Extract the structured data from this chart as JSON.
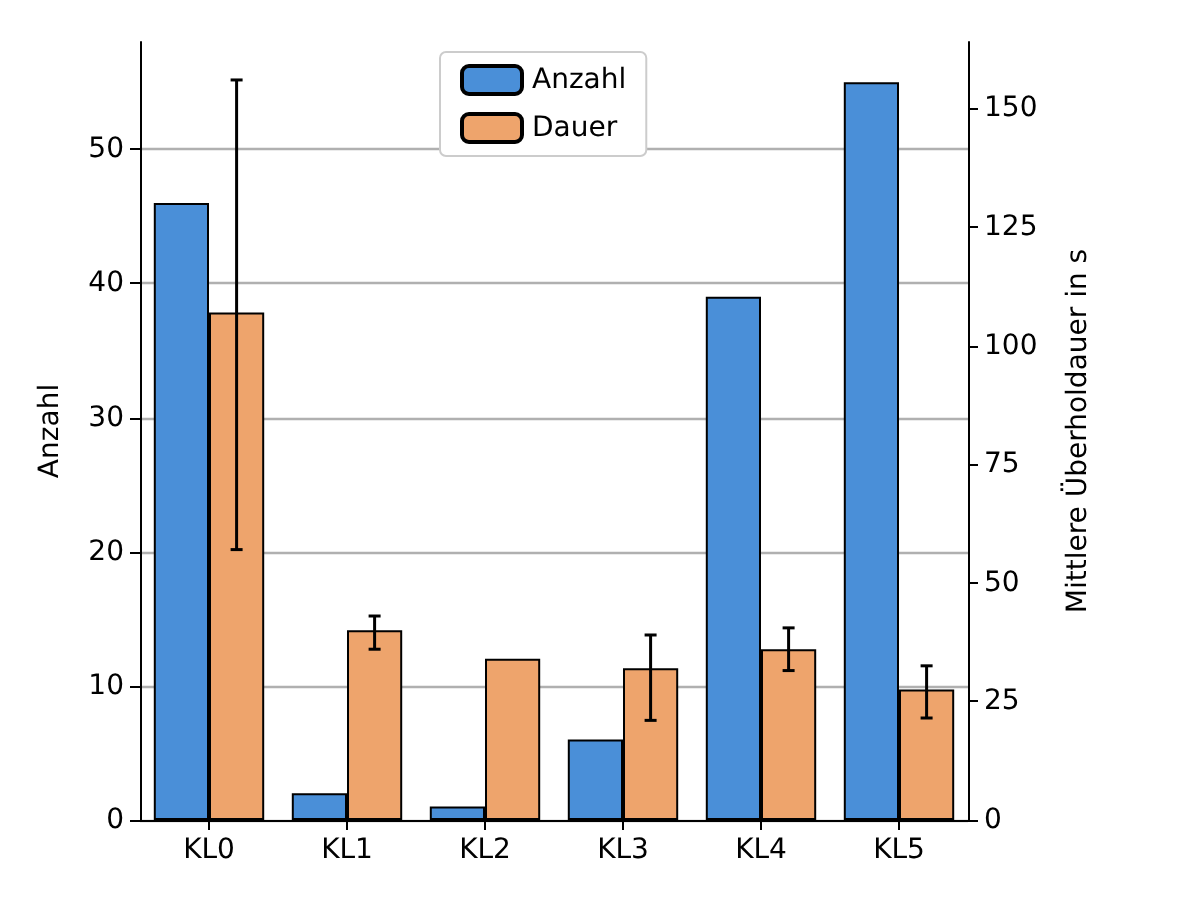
{
  "chart_data": {
    "type": "bar",
    "categories": [
      "KL0",
      "KL1",
      "KL2",
      "KL3",
      "KL4",
      "KL5"
    ],
    "ylabel": "Anzahl",
    "y2label": "Mittlere Überholdauer in s",
    "series": [
      {
        "name": "Anzahl",
        "color": "#4a8fd8",
        "values": [
          46,
          2,
          1,
          6,
          39,
          55
        ]
      },
      {
        "name": "Dauer",
        "color": "#eea46c",
        "axis": "y2",
        "values": [
          107,
          40,
          34,
          32,
          36,
          27.5
        ],
        "errors": [
          [
            57,
            156
          ],
          [
            36,
            43
          ],
          null,
          [
            21,
            39
          ],
          [
            31.5,
            40.5
          ],
          [
            21.5,
            32.5
          ]
        ]
      }
    ],
    "ylim": [
      0,
      58
    ],
    "yticks": [
      0,
      10,
      20,
      30,
      40,
      50
    ],
    "y2lim": [
      0,
      164
    ],
    "y2ticks": [
      0,
      25,
      50,
      75,
      100,
      125,
      150
    ],
    "grid": "y",
    "legend": "top"
  }
}
